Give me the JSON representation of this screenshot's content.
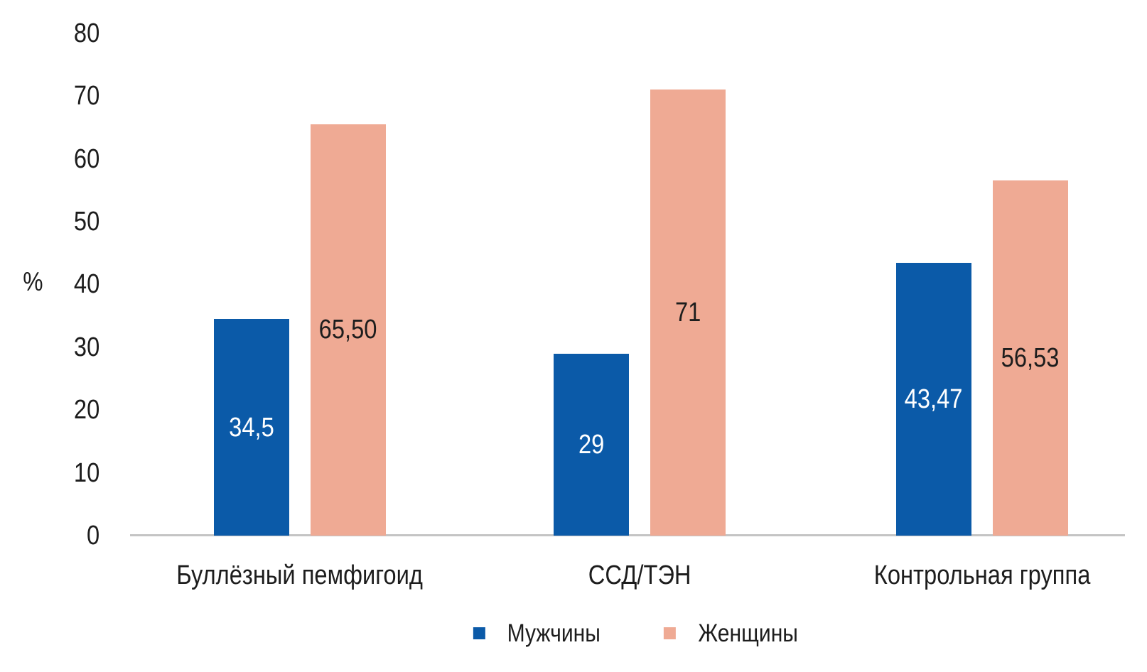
{
  "chart_data": {
    "type": "bar",
    "title": "",
    "ylabel": "%",
    "xlabel": "",
    "categories": [
      "Буллёзный пемфигоид",
      "ССД/ТЭН",
      "Контрольная группа"
    ],
    "series": [
      {
        "name": "Мужчины",
        "color": "#0b5aa8",
        "label_color": "#ffffff",
        "values": [
          34.5,
          29,
          43.47
        ],
        "value_labels": [
          "34,5",
          "29",
          "43,47"
        ]
      },
      {
        "name": "Женщины",
        "color": "#efaa94",
        "label_color": "#1d1d1d",
        "values": [
          65.5,
          71,
          56.53
        ],
        "value_labels": [
          "65,50",
          "71",
          "56,53"
        ]
      }
    ],
    "y_ticks": [
      0,
      10,
      20,
      30,
      40,
      50,
      60,
      70,
      80
    ],
    "ylim": [
      0,
      80
    ],
    "grid": false,
    "legend_position": "bottom",
    "axis_color": "#c4c4c4",
    "text_color": "#1d1d1d"
  }
}
